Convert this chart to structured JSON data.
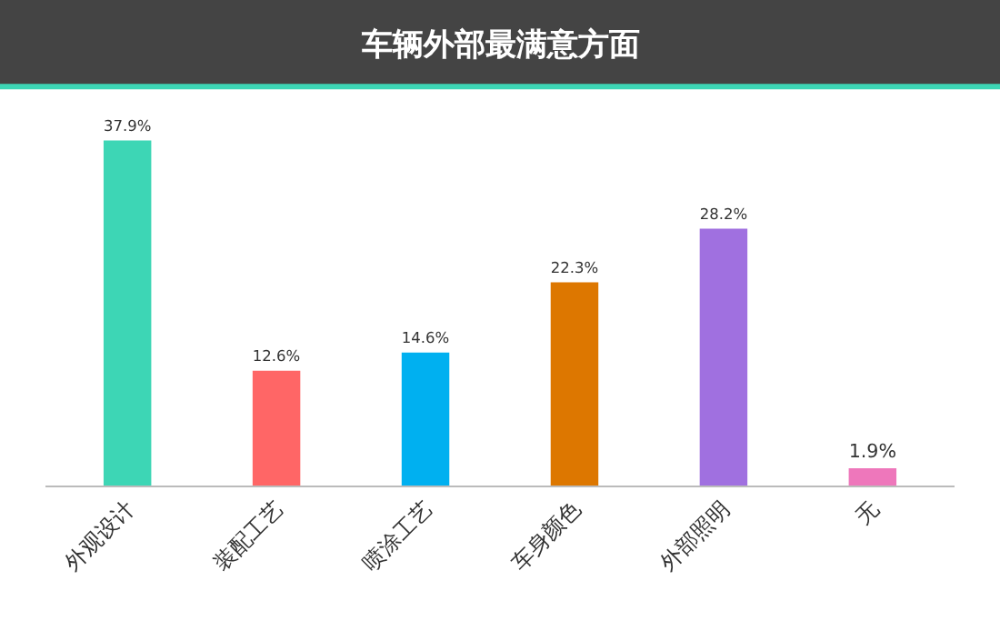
{
  "chart_data": {
    "type": "bar",
    "title": "车辆外部最满意方面",
    "categories": [
      "外观设计",
      "装配工艺",
      "喷涂工艺",
      "车身颜色",
      "外部照明",
      "无"
    ],
    "values": [
      37.9,
      12.6,
      14.6,
      22.3,
      28.2,
      1.9
    ],
    "colors": [
      "#3dd6b5",
      "#ff6666",
      "#00b0f0",
      "#dd7700",
      "#a070e0",
      "#ee77bb"
    ],
    "value_labels": [
      "37.9%",
      "12.6%",
      "14.6%",
      "22.3%",
      "28.2%",
      "1.9%"
    ]
  }
}
